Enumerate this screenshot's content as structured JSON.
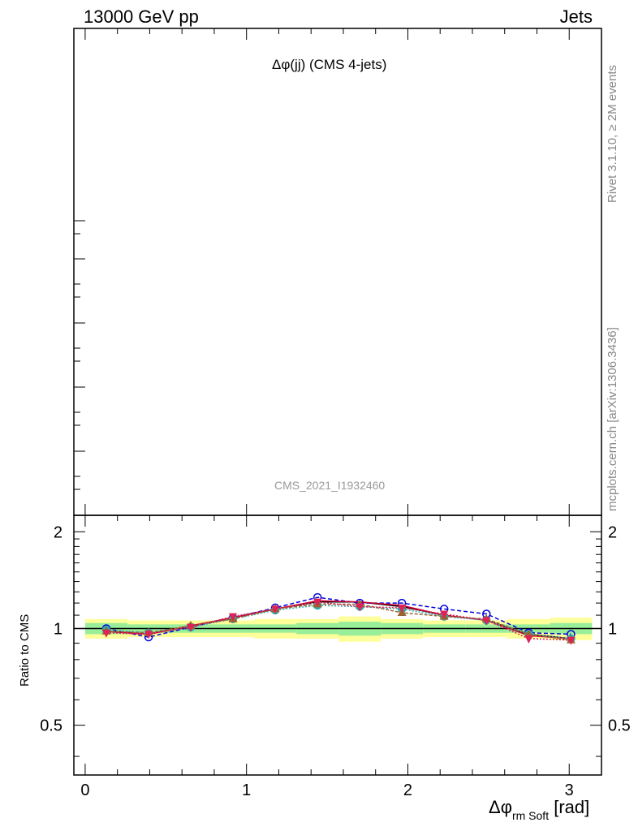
{
  "header": {
    "left": "13000 GeV pp",
    "right": "Jets"
  },
  "title": "Δφ(jj) (CMS 4-jets)",
  "analysis_id": "CMS_2021_I1932460",
  "side_text": {
    "rivet": "Rivet 3.1.10, ≥ 2M events",
    "mcplots": "mcplots.cern.ch [arXiv:1306.3436]"
  },
  "chart_data": {
    "type": "line",
    "title": "Δφ(jj) (CMS 4-jets)",
    "xlabel_main": "Δφ",
    "xlabel_sub": "rm Soft",
    "xlabel_unit": "[rad]",
    "ylabel": "Ratio to CMS",
    "xlim": [
      -0.07,
      3.2
    ],
    "ylim": [
      0.35,
      2.25
    ],
    "yscale": "log",
    "x_ticks": [
      "0",
      "1",
      "2",
      "3"
    ],
    "y_ticks": [
      "0.5",
      "1",
      "2"
    ],
    "bins": [
      0.0,
      0.2618,
      0.5236,
      0.7854,
      1.0472,
      1.309,
      1.5708,
      1.8326,
      2.0944,
      2.3562,
      2.618,
      2.8798,
      3.1416
    ],
    "x": [
      0.131,
      0.393,
      0.654,
      0.916,
      1.178,
      1.44,
      1.702,
      1.963,
      2.225,
      2.487,
      2.749,
      3.011
    ],
    "band_inner": [
      0.04,
      0.03,
      0.03,
      0.03,
      0.03,
      0.04,
      0.05,
      0.04,
      0.03,
      0.03,
      0.03,
      0.04
    ],
    "band_outer": [
      0.07,
      0.06,
      0.06,
      0.06,
      0.07,
      0.07,
      0.09,
      0.07,
      0.06,
      0.06,
      0.07,
      0.08
    ],
    "series": [
      {
        "color": "#000000",
        "dash": "",
        "marker": "none",
        "values": [
          0.98,
          0.96,
          1.02,
          1.08,
          1.15,
          1.21,
          1.21,
          1.17,
          1.1,
          1.06,
          0.96,
          0.93
        ]
      },
      {
        "color": "#0000dd",
        "dash": "5,3",
        "marker": "circle",
        "values": [
          1.0,
          0.94,
          1.01,
          1.08,
          1.16,
          1.25,
          1.2,
          1.2,
          1.15,
          1.11,
          0.97,
          0.96
        ]
      },
      {
        "color": "#cc0033",
        "dash": "",
        "marker": "none",
        "values": [
          0.98,
          0.96,
          1.02,
          1.08,
          1.15,
          1.22,
          1.21,
          1.18,
          1.1,
          1.06,
          0.95,
          0.93
        ]
      },
      {
        "color": "#33aaaa",
        "dash": "2,2",
        "marker": "circle",
        "values": [
          0.99,
          0.97,
          1.01,
          1.07,
          1.14,
          1.18,
          1.17,
          1.15,
          1.09,
          1.06,
          0.96,
          0.93
        ]
      },
      {
        "color": "#996633",
        "dash": "4,2",
        "marker": "triangle",
        "values": [
          0.98,
          0.97,
          1.02,
          1.07,
          1.15,
          1.19,
          1.19,
          1.12,
          1.09,
          1.07,
          0.96,
          0.92
        ]
      },
      {
        "color": "#dd2255",
        "dash": "2,2",
        "marker": "triangle-down",
        "values": [
          0.97,
          0.96,
          1.01,
          1.09,
          1.15,
          1.21,
          1.17,
          1.16,
          1.11,
          1.06,
          0.93,
          0.92
        ]
      }
    ]
  }
}
